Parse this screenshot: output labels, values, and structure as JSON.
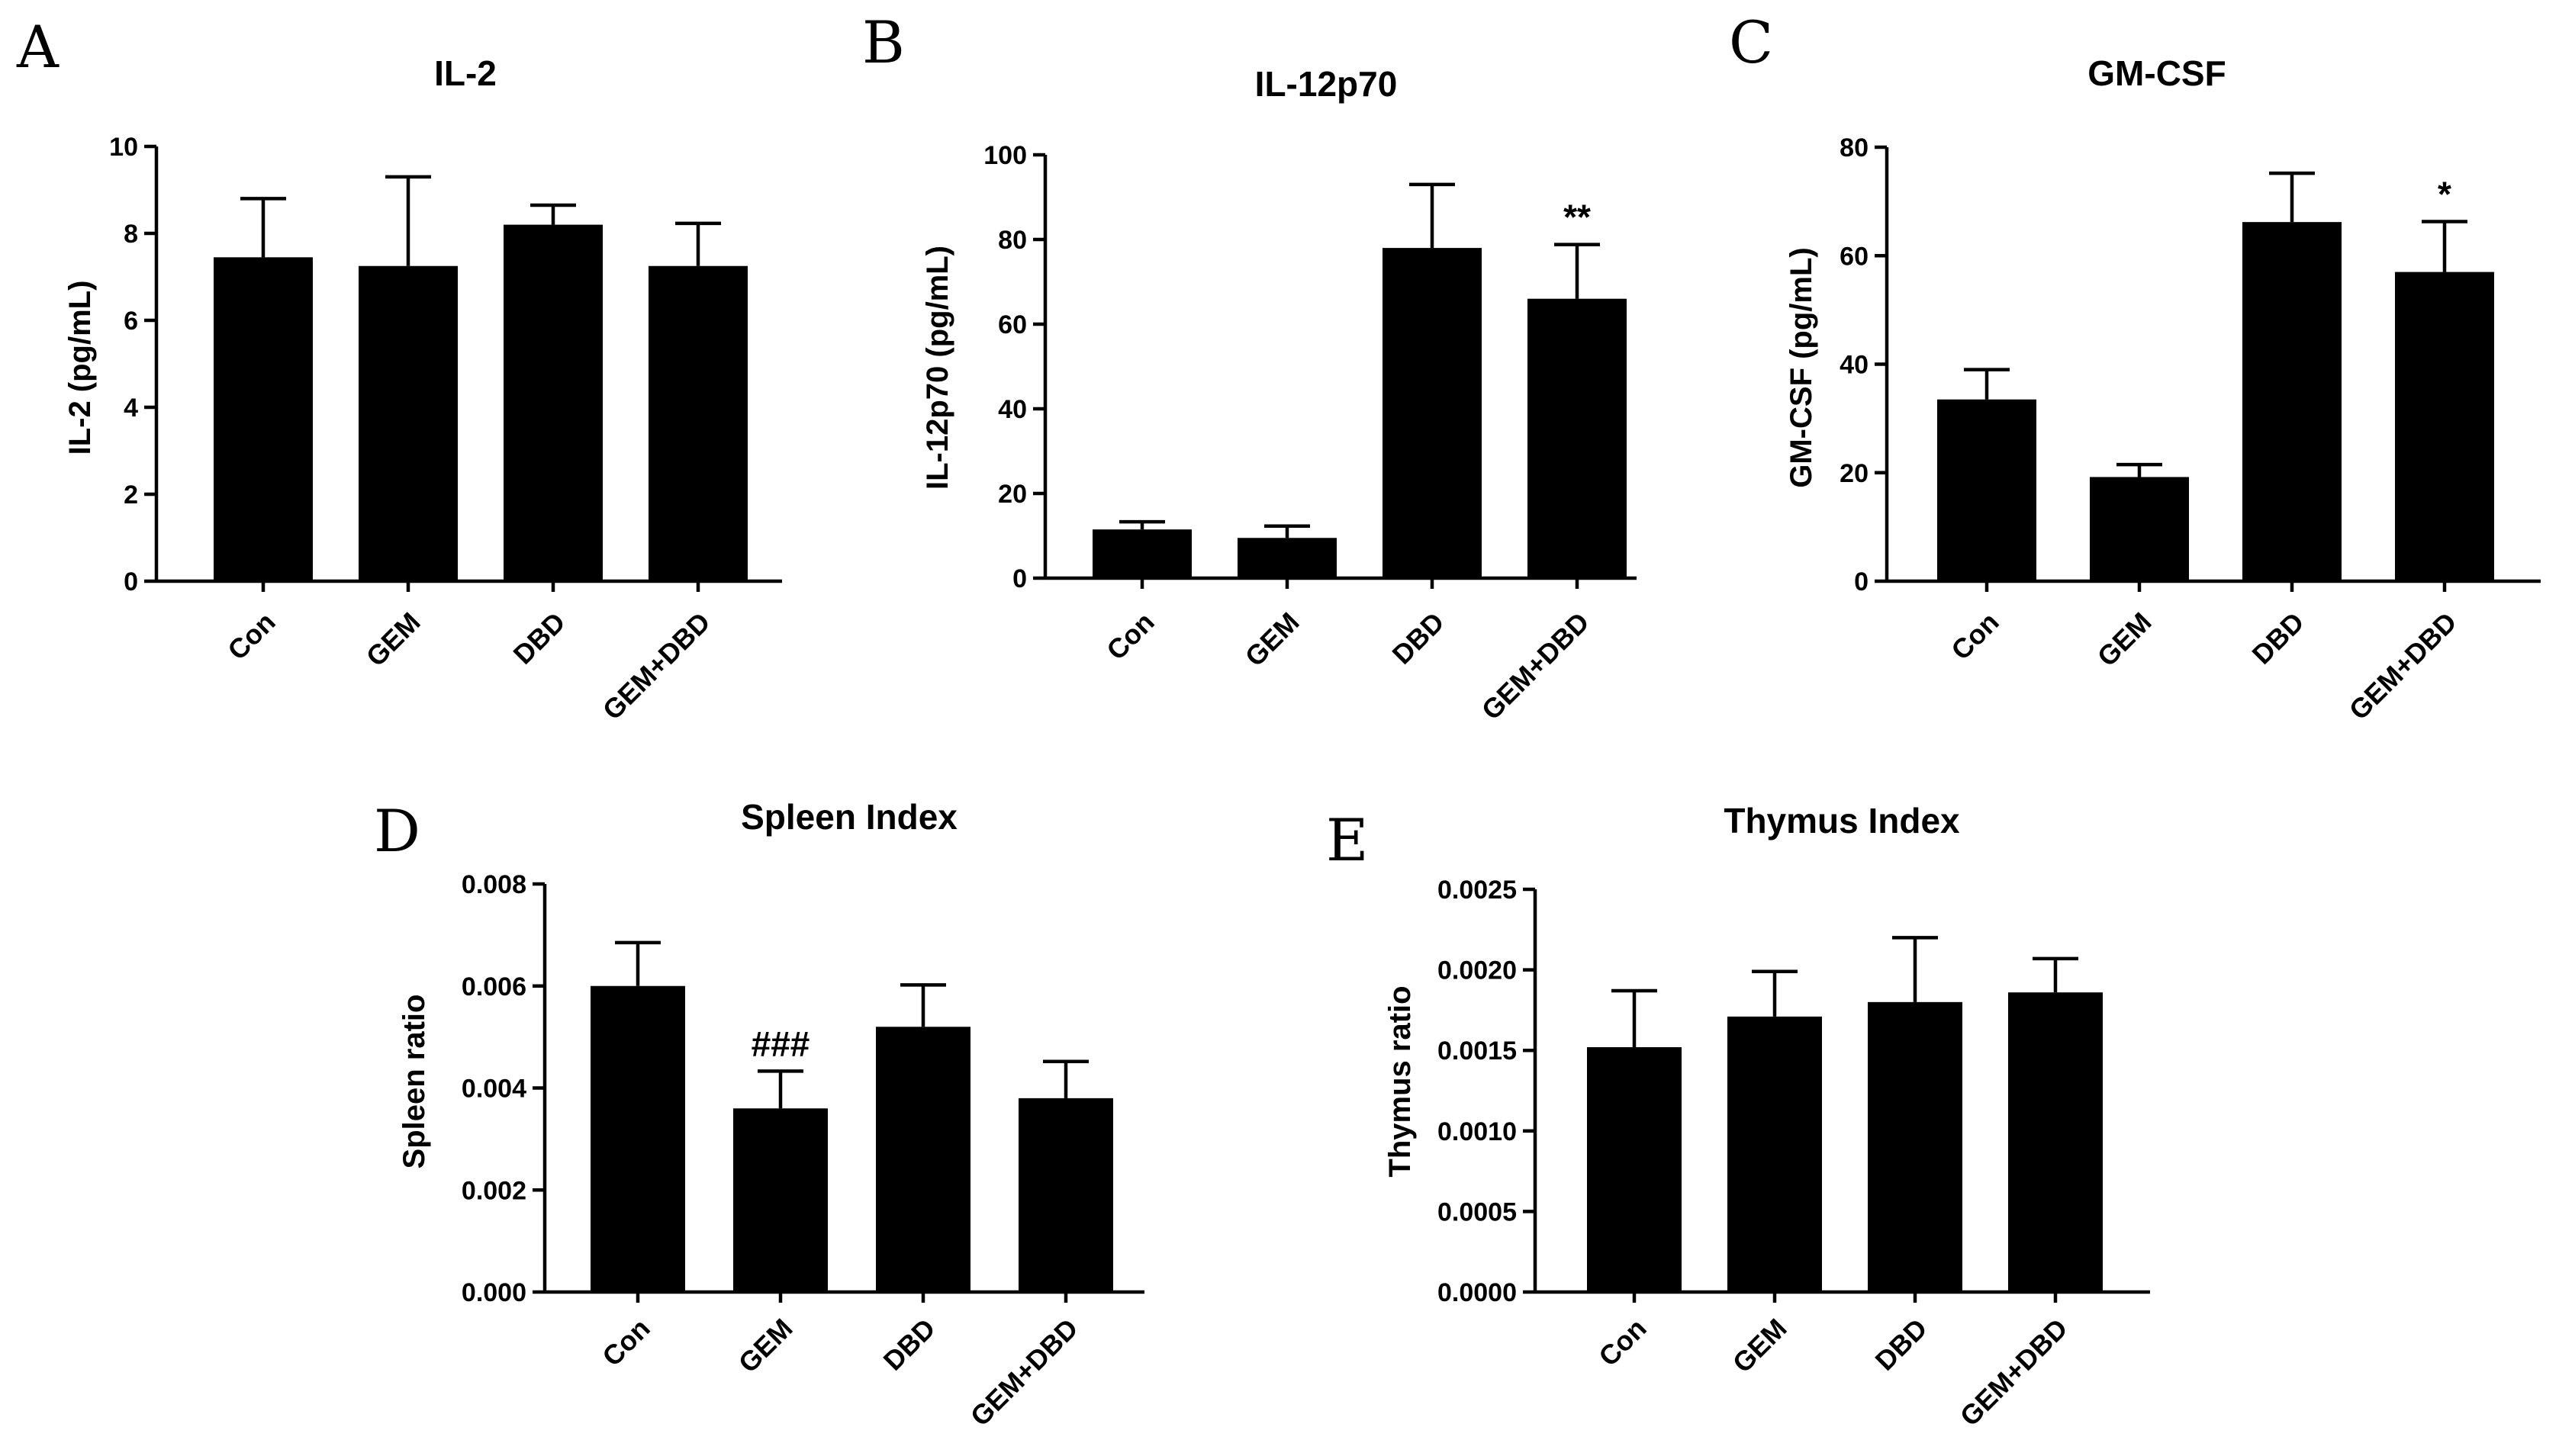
{
  "chart_data": [
    {
      "panel": "A",
      "type": "bar",
      "title": "IL-2",
      "ylabel": "IL-2 (pg/mL)",
      "xlabel": "",
      "categories": [
        "Con",
        "GEM",
        "DBD",
        "GEM+DBD"
      ],
      "values": [
        7.45,
        7.25,
        8.2,
        7.25
      ],
      "errors": [
        1.35,
        2.05,
        0.45,
        0.98
      ],
      "ylim": [
        0,
        10
      ],
      "yticks": [
        "0",
        "2",
        "4",
        "6",
        "8",
        "10"
      ],
      "annotations": [
        "",
        "",
        "",
        ""
      ]
    },
    {
      "panel": "B",
      "type": "bar",
      "title": "IL-12p70",
      "ylabel": "IL-12p70 (pg/mL)",
      "xlabel": "",
      "categories": [
        "Con",
        "GEM",
        "DBD",
        "GEM+DBD"
      ],
      "values": [
        11.5,
        9.5,
        78.0,
        66.0
      ],
      "errors": [
        1.8,
        2.8,
        15.0,
        12.8
      ],
      "ylim": [
        0,
        100
      ],
      "yticks": [
        "0",
        "20",
        "40",
        "60",
        "80",
        "100"
      ],
      "annotations": [
        "",
        "",
        "",
        "**"
      ]
    },
    {
      "panel": "C",
      "type": "bar",
      "title": "GM-CSF",
      "ylabel": "GM-CSF (pg/mL)",
      "xlabel": "",
      "categories": [
        "Con",
        "GEM",
        "DBD",
        "GEM+DBD"
      ],
      "values": [
        33.5,
        19.2,
        66.2,
        57.0
      ],
      "errors": [
        5.5,
        2.3,
        9.0,
        9.3
      ],
      "ylim": [
        0,
        80
      ],
      "yticks": [
        "0",
        "20",
        "40",
        "60",
        "80"
      ],
      "annotations": [
        "",
        "",
        "",
        "*"
      ]
    },
    {
      "panel": "D",
      "type": "bar",
      "title": "Spleen Index",
      "ylabel": "Spleen ratio",
      "xlabel": "",
      "categories": [
        "Con",
        "GEM",
        "DBD",
        "GEM+DBD"
      ],
      "values": [
        0.006,
        0.0036,
        0.0052,
        0.0038
      ],
      "errors": [
        0.00085,
        0.00073,
        0.00082,
        0.00072
      ],
      "ylim": [
        0,
        0.008
      ],
      "yticks": [
        "0.000",
        "0.002",
        "0.004",
        "0.006",
        "0.008"
      ],
      "annotations": [
        "",
        "###",
        "",
        ""
      ]
    },
    {
      "panel": "E",
      "type": "bar",
      "title": "Thymus Index",
      "ylabel": "Thymus ratio",
      "xlabel": "",
      "categories": [
        "Con",
        "GEM",
        "DBD",
        "GEM+DBD"
      ],
      "values": [
        0.00152,
        0.00171,
        0.0018,
        0.00186
      ],
      "errors": [
        0.00035,
        0.00028,
        0.0004,
        0.00021
      ],
      "ylim": [
        0,
        0.0025
      ],
      "yticks": [
        "0.0000",
        "0.0005",
        "0.0010",
        "0.0015",
        "0.0020",
        "0.0025"
      ],
      "annotations": [
        "",
        "",
        "",
        ""
      ]
    }
  ]
}
